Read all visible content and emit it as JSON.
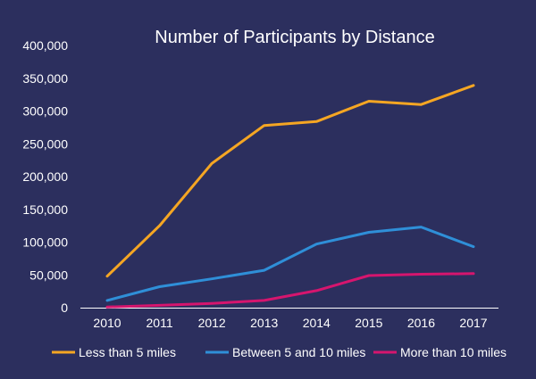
{
  "chart_data": {
    "type": "line",
    "title": "Number of Participants by Distance",
    "xlabel": "",
    "ylabel": "",
    "categories": [
      "2010",
      "2011",
      "2012",
      "2013",
      "2014",
      "2015",
      "2016",
      "2017"
    ],
    "ylim": [
      0,
      400000
    ],
    "yticks": [
      "0",
      "50,000",
      "100,000",
      "150,000",
      "200,000",
      "250,000",
      "300,000",
      "350,000",
      "400,000"
    ],
    "grid": false,
    "legend_position": "bottom",
    "series": [
      {
        "name": "Less than 5 miles",
        "color": "#f5a623",
        "values": [
          48000,
          125000,
          220000,
          278000,
          284000,
          315000,
          310000,
          339000
        ]
      },
      {
        "name": "Between 5 and 10 miles",
        "color": "#2f8fd8",
        "values": [
          11000,
          32000,
          44000,
          57000,
          97000,
          115000,
          123000,
          93000
        ]
      },
      {
        "name": "More than 10 miles",
        "color": "#d6156e",
        "values": [
          1000,
          3500,
          6500,
          11000,
          26000,
          49000,
          51000,
          52000
        ]
      }
    ]
  }
}
